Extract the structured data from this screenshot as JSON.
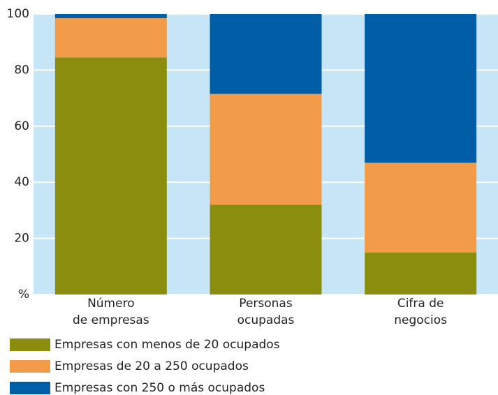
{
  "chart_data": {
    "type": "stacked-bar",
    "categories": [
      "Número\nde empresas",
      "Personas\nocupadas",
      "Cifra de\nnegocios"
    ],
    "series": [
      {
        "name": "Empresas con menos de 20 ocupados",
        "color": "#8a8d0d",
        "values": [
          84.5,
          32,
          15
        ]
      },
      {
        "name": "Empresas de 20 a 250 ocupados",
        "color": "#f29c4a",
        "values": [
          14,
          39.5,
          32
        ]
      },
      {
        "name": "Empresas con 250 o más ocupados",
        "color": "#005ea6",
        "values": [
          1.5,
          28.5,
          53
        ]
      }
    ],
    "ylim": [
      0,
      100
    ],
    "yticks": [
      {
        "value": 0,
        "label": "%"
      },
      20,
      40,
      60,
      80,
      100
    ],
    "grid": true,
    "background": "#c6e6f8"
  }
}
